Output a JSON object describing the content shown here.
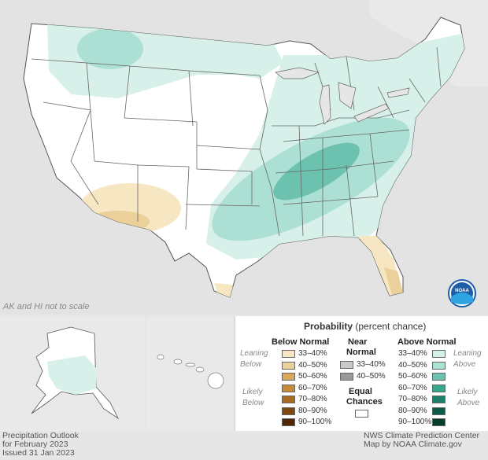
{
  "note": "AK and HI not to scale",
  "legend": {
    "title": "Probability",
    "title_suffix": "(percent chance)",
    "below_header": "Below Normal",
    "near_header_1": "Near",
    "near_header_2": "Normal",
    "above_header": "Above Normal",
    "leaning_below_1": "Leaning",
    "leaning_below_2": "Below",
    "likely_below_1": "Likely",
    "likely_below_2": "Below",
    "leaning_above_1": "Leaning",
    "leaning_above_2": "Above",
    "likely_above_1": "Likely",
    "likely_above_2": "Above",
    "equal_1": "Equal",
    "equal_2": "Chances",
    "below": [
      {
        "label": "33–40%",
        "color": "#f7e6c2"
      },
      {
        "label": "40–50%",
        "color": "#ecd09a"
      },
      {
        "label": "50–60%",
        "color": "#d9a95b"
      },
      {
        "label": "60–70%",
        "color": "#c68a3a"
      },
      {
        "label": "70–80%",
        "color": "#a96b22"
      },
      {
        "label": "80–90%",
        "color": "#80480f"
      },
      {
        "label": "90–100%",
        "color": "#4e2805"
      }
    ],
    "near": [
      {
        "label": "33–40%",
        "color": "#c8c8c8"
      },
      {
        "label": "40–50%",
        "color": "#999999"
      }
    ],
    "above": [
      {
        "label": "33–40%",
        "color": "#d7f0ea"
      },
      {
        "label": "40–50%",
        "color": "#ade0d4"
      },
      {
        "label": "50–60%",
        "color": "#6cc2ae"
      },
      {
        "label": "60–70%",
        "color": "#3aa58d"
      },
      {
        "label": "70–80%",
        "color": "#1d8068"
      },
      {
        "label": "80–90%",
        "color": "#0b5b47"
      },
      {
        "label": "90–100%",
        "color": "#033d2e"
      }
    ]
  },
  "footer_left_1": "Precipitation Outlook",
  "footer_left_2": "for February 2023",
  "footer_left_3": "Issued 31 Jan 2023",
  "footer_right_1": "NWS Climate Prediction Center",
  "footer_right_2": "Map by NOAA Climate.gov",
  "logo_text": "NOAA"
}
